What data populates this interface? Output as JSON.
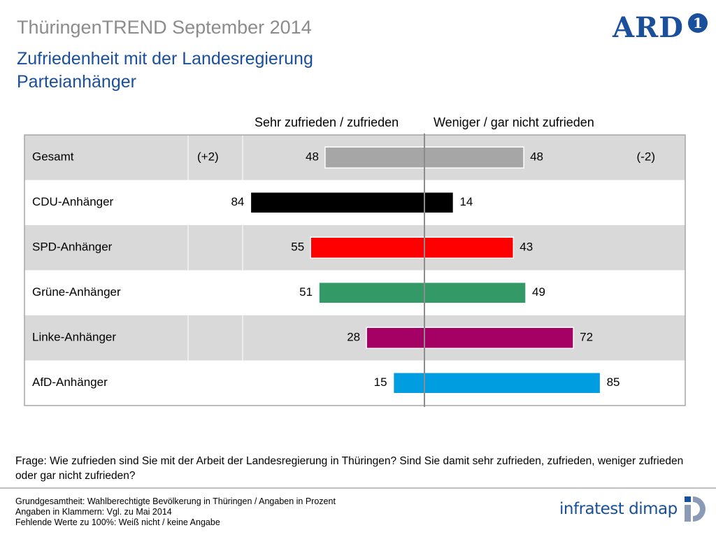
{
  "header": {
    "kicker": "ThüringenTREND September 2014",
    "title_line1": "Zufriedenheit mit der Landesregierung",
    "title_line2": "Parteianhänger",
    "logo_text": "ARD",
    "logo_number": "1"
  },
  "colors": {
    "title_blue": "#1a4f9c",
    "row_shade": "#d9d9d9",
    "frame": "#a6a6a6"
  },
  "chart_data": {
    "type": "bar",
    "orientation": "horizontal-diverging",
    "column_headers": [
      "Sehr zufrieden / zufrieden",
      "Weniger / gar nicht zufrieden"
    ],
    "categories": [
      "Gesamt",
      "CDU-Anhänger",
      "SPD-Anhänger",
      "Grüne-Anhänger",
      "Linke-Anhänger",
      "AfD-Anhänger"
    ],
    "series": [
      {
        "name": "Sehr zufrieden / zufrieden",
        "values": [
          48,
          84,
          55,
          51,
          28,
          15
        ]
      },
      {
        "name": "Weniger / gar nicht zufrieden",
        "values": [
          48,
          14,
          43,
          49,
          72,
          85
        ]
      }
    ],
    "changes_left": [
      "(+2)",
      "",
      "",
      "",
      "",
      ""
    ],
    "changes_right": [
      "(-2)",
      "",
      "",
      "",
      "",
      ""
    ],
    "bar_colors": [
      "#a6a6a6",
      "#000000",
      "#ff0000",
      "#339966",
      "#a50063",
      "#009ee0"
    ],
    "unit": "%"
  },
  "question": "Frage: Wie zufrieden sind Sie mit der Arbeit der Landesregierung in Thüringen? Sind Sie damit sehr zufrieden, zufrieden, weniger zufrieden oder gar nicht zufrieden?",
  "footnotes": [
    "Grundgesamtheit: Wahlberechtigte Bevölkerung in Thüringen / Angaben in Prozent",
    "Angaben in Klammern: Vgl. zu Mai 2014",
    "Fehlende Werte zu 100%: Weiß nicht / keine Angabe"
  ],
  "footer_logo": "infratest dimap"
}
